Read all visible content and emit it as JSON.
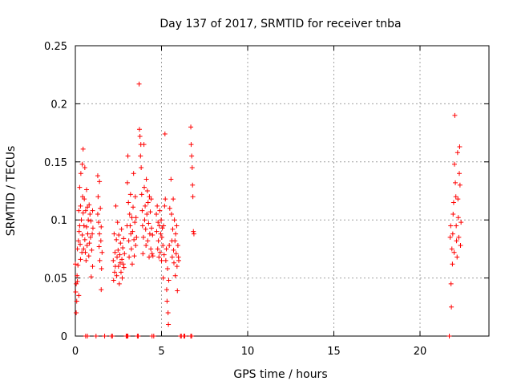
{
  "chart_data": {
    "type": "scatter",
    "title": "Day 137 of 2017, SRMTID for receiver tnba",
    "xlabel": "GPS time / hours",
    "ylabel": "SRMTID / TECUs",
    "xlim": [
      0,
      24
    ],
    "ylim": [
      0,
      0.25
    ],
    "xticks": [
      0,
      5,
      10,
      15,
      20
    ],
    "xtick_labels": [
      "0",
      "5",
      "10",
      "15",
      "20"
    ],
    "yticks": [
      0,
      0.05,
      0.1,
      0.15,
      0.2,
      0.25
    ],
    "ytick_labels": [
      "0",
      "0.05",
      "0.1",
      "0.15",
      "0.2",
      "0.25"
    ],
    "grid": true,
    "marker": "+",
    "color": "#ff0000",
    "series": [
      {
        "name": "SRMTID",
        "points": [
          [
            0.0,
            0.062
          ],
          [
            0.02,
            0.038
          ],
          [
            0.05,
            0.045
          ],
          [
            0.05,
            0.02
          ],
          [
            0.08,
            0.03
          ],
          [
            0.1,
            0.052
          ],
          [
            0.12,
            0.075
          ],
          [
            0.12,
            0.047
          ],
          [
            0.15,
            0.061
          ],
          [
            0.18,
            0.082
          ],
          [
            0.2,
            0.108
          ],
          [
            0.2,
            0.035
          ],
          [
            0.22,
            0.09
          ],
          [
            0.25,
            0.128
          ],
          [
            0.25,
            0.095
          ],
          [
            0.28,
            0.079
          ],
          [
            0.3,
            0.112
          ],
          [
            0.3,
            0.066
          ],
          [
            0.32,
            0.14
          ],
          [
            0.35,
            0.1
          ],
          [
            0.38,
            0.072
          ],
          [
            0.4,
            0.087
          ],
          [
            0.4,
            0.148
          ],
          [
            0.42,
            0.12
          ],
          [
            0.45,
            0.106
          ],
          [
            0.45,
            0.161
          ],
          [
            0.48,
            0.075
          ],
          [
            0.5,
            0.095
          ],
          [
            0.52,
            0.118
          ],
          [
            0.55,
            0.145
          ],
          [
            0.55,
            0.083
          ],
          [
            0.58,
            0.072
          ],
          [
            0.6,
            0.108
          ],
          [
            0.62,
            0.065
          ],
          [
            0.65,
            0.126
          ],
          [
            0.65,
            0.094
          ],
          [
            0.68,
            0.078
          ],
          [
            0.7,
            0.111
          ],
          [
            0.72,
            0.088
          ],
          [
            0.75,
            0.1
          ],
          [
            0.78,
            0.069
          ],
          [
            0.8,
            0.113
          ],
          [
            0.82,
            0.08
          ],
          [
            0.85,
            0.105
          ],
          [
            0.88,
            0.085
          ],
          [
            0.9,
            0.099
          ],
          [
            0.92,
            0.051
          ],
          [
            0.95,
            0.074
          ],
          [
            0.98,
            0.088
          ],
          [
            1.0,
            0.06
          ],
          [
            1.0,
            0.108
          ],
          [
            1.02,
            0.093
          ],
          [
            1.3,
            0.138
          ],
          [
            1.3,
            0.105
          ],
          [
            1.32,
            0.12
          ],
          [
            1.35,
            0.098
          ],
          [
            1.38,
            0.077
          ],
          [
            1.4,
            0.133
          ],
          [
            1.4,
            0.088
          ],
          [
            1.42,
            0.065
          ],
          [
            1.45,
            0.11
          ],
          [
            1.48,
            0.082
          ],
          [
            1.5,
            0.094
          ],
          [
            1.5,
            0.04
          ],
          [
            1.52,
            0.058
          ],
          [
            1.55,
            0.072
          ],
          [
            2.2,
            0.065
          ],
          [
            2.22,
            0.048
          ],
          [
            2.25,
            0.088
          ],
          [
            2.28,
            0.055
          ],
          [
            2.3,
            0.072
          ],
          [
            2.32,
            0.06
          ],
          [
            2.35,
            0.112
          ],
          [
            2.38,
            0.083
          ],
          [
            2.4,
            0.052
          ],
          [
            2.42,
            0.068
          ],
          [
            2.45,
            0.098
          ],
          [
            2.48,
            0.074
          ],
          [
            2.5,
            0.06
          ],
          [
            2.52,
            0.087
          ],
          [
            2.55,
            0.045
          ],
          [
            2.58,
            0.07
          ],
          [
            2.6,
            0.063
          ],
          [
            2.62,
            0.08
          ],
          [
            2.65,
            0.055
          ],
          [
            2.68,
            0.092
          ],
          [
            2.7,
            0.066
          ],
          [
            2.72,
            0.05
          ],
          [
            2.75,
            0.076
          ],
          [
            2.78,
            0.062
          ],
          [
            2.8,
            0.084
          ],
          [
            2.82,
            0.059
          ],
          [
            2.85,
            0.071
          ],
          [
            3.0,
            0.095
          ],
          [
            3.02,
            0.132
          ],
          [
            3.05,
            0.155
          ],
          [
            3.08,
            0.115
          ],
          [
            3.1,
            0.082
          ],
          [
            3.12,
            0.068
          ],
          [
            3.15,
            0.105
          ],
          [
            3.18,
            0.095
          ],
          [
            3.2,
            0.122
          ],
          [
            3.22,
            0.088
          ],
          [
            3.25,
            0.075
          ],
          [
            3.28,
            0.102
          ],
          [
            3.3,
            0.062
          ],
          [
            3.32,
            0.09
          ],
          [
            3.35,
            0.111
          ],
          [
            3.38,
            0.14
          ],
          [
            3.4,
            0.083
          ],
          [
            3.42,
            0.069
          ],
          [
            3.45,
            0.098
          ],
          [
            3.48,
            0.12
          ],
          [
            3.5,
            0.078
          ],
          [
            3.52,
            0.102
          ],
          [
            3.55,
            0.085
          ],
          [
            3.7,
            0.217
          ],
          [
            3.72,
            0.178
          ],
          [
            3.75,
            0.172
          ],
          [
            3.78,
            0.155
          ],
          [
            3.8,
            0.165
          ],
          [
            3.82,
            0.145
          ],
          [
            3.85,
            0.122
          ],
          [
            3.88,
            0.108
          ],
          [
            3.9,
            0.095
          ],
          [
            3.92,
            0.071
          ],
          [
            3.95,
            0.085
          ],
          [
            3.98,
            0.165
          ],
          [
            4.0,
            0.128
          ],
          [
            4.02,
            0.1
          ],
          [
            4.05,
            0.112
          ],
          [
            4.08,
            0.092
          ],
          [
            4.1,
            0.078
          ],
          [
            4.12,
            0.135
          ],
          [
            4.15,
            0.105
          ],
          [
            4.18,
            0.125
          ],
          [
            4.2,
            0.082
          ],
          [
            4.22,
            0.115
          ],
          [
            4.25,
            0.097
          ],
          [
            4.28,
            0.068
          ],
          [
            4.3,
            0.12
          ],
          [
            4.32,
            0.088
          ],
          [
            4.35,
            0.107
          ],
          [
            4.38,
            0.075
          ],
          [
            4.4,
            0.118
          ],
          [
            4.42,
            0.093
          ],
          [
            4.45,
            0.071
          ],
          [
            4.48,
            0.087
          ],
          [
            4.5,
            0.069
          ],
          [
            4.7,
            0.105
          ],
          [
            4.72,
            0.09
          ],
          [
            4.75,
            0.112
          ],
          [
            4.78,
            0.075
          ],
          [
            4.8,
            0.098
          ],
          [
            4.82,
            0.082
          ],
          [
            4.85,
            0.068
          ],
          [
            4.88,
            0.095
          ],
          [
            4.9,
            0.108
          ],
          [
            4.92,
            0.072
          ],
          [
            4.95,
            0.088
          ],
          [
            4.98,
            0.1
          ],
          [
            5.0,
            0.065
          ],
          [
            5.02,
            0.085
          ],
          [
            5.05,
            0.093
          ],
          [
            5.08,
            0.078
          ],
          [
            5.1,
            0.05
          ],
          [
            5.12,
            0.095
          ],
          [
            5.15,
            0.07
          ],
          [
            5.18,
            0.112
          ],
          [
            5.2,
            0.174
          ],
          [
            5.22,
            0.118
          ],
          [
            5.25,
            0.065
          ],
          [
            5.28,
            0.075
          ],
          [
            5.3,
            0.04
          ],
          [
            5.32,
            0.03
          ],
          [
            5.35,
            0.058
          ],
          [
            5.38,
            0.02
          ],
          [
            5.4,
            0.01
          ],
          [
            5.42,
            0.048
          ],
          [
            5.45,
            0.078
          ],
          [
            5.48,
            0.11
          ],
          [
            5.55,
            0.135
          ],
          [
            5.58,
            0.105
          ],
          [
            5.6,
            0.082
          ],
          [
            5.62,
            0.068
          ],
          [
            5.65,
            0.092
          ],
          [
            5.68,
            0.118
          ],
          [
            5.7,
            0.074
          ],
          [
            5.72,
            0.063
          ],
          [
            5.75,
            0.1
          ],
          [
            5.78,
            0.082
          ],
          [
            5.8,
            0.052
          ],
          [
            5.82,
            0.088
          ],
          [
            5.85,
            0.071
          ],
          [
            5.88,
            0.095
          ],
          [
            5.9,
            0.06
          ],
          [
            5.92,
            0.039
          ],
          [
            5.95,
            0.078
          ],
          [
            5.98,
            0.068
          ],
          [
            6.0,
            0.065
          ],
          [
            6.7,
            0.18
          ],
          [
            6.72,
            0.165
          ],
          [
            6.75,
            0.155
          ],
          [
            6.78,
            0.145
          ],
          [
            6.8,
            0.13
          ],
          [
            6.82,
            0.12
          ],
          [
            6.85,
            0.09
          ],
          [
            6.88,
            0.088
          ],
          [
            21.75,
            0.085
          ],
          [
            21.78,
            0.095
          ],
          [
            21.8,
            0.045
          ],
          [
            21.82,
            0.025
          ],
          [
            21.85,
            0.075
          ],
          [
            21.88,
            0.062
          ],
          [
            21.9,
            0.088
          ],
          [
            21.92,
            0.105
          ],
          [
            21.95,
            0.115
          ],
          [
            21.98,
            0.072
          ],
          [
            22.0,
            0.148
          ],
          [
            22.02,
            0.19
          ],
          [
            22.05,
            0.132
          ],
          [
            22.08,
            0.12
          ],
          [
            22.1,
            0.095
          ],
          [
            22.12,
            0.082
          ],
          [
            22.15,
            0.068
          ],
          [
            22.18,
            0.158
          ],
          [
            22.2,
            0.118
          ],
          [
            22.22,
            0.102
          ],
          [
            22.25,
            0.085
          ],
          [
            22.28,
            0.14
          ],
          [
            22.3,
            0.163
          ],
          [
            22.32,
            0.13
          ],
          [
            22.35,
            0.078
          ],
          [
            22.38,
            0.098
          ],
          [
            0.6,
            0.0
          ],
          [
            0.7,
            0.0
          ],
          [
            1.2,
            0.0
          ],
          [
            1.7,
            0.0
          ],
          [
            2.1,
            0.0
          ],
          [
            2.15,
            0.0
          ],
          [
            2.95,
            0.0
          ],
          [
            3.0,
            0.0
          ],
          [
            3.05,
            0.0
          ],
          [
            3.6,
            0.0
          ],
          [
            3.65,
            0.0
          ],
          [
            4.45,
            0.0
          ],
          [
            4.55,
            0.0
          ],
          [
            6.1,
            0.0
          ],
          [
            6.15,
            0.0
          ],
          [
            6.3,
            0.0
          ],
          [
            6.35,
            0.0
          ],
          [
            6.7,
            0.0
          ],
          [
            6.75,
            0.0
          ],
          [
            21.7,
            0.0
          ]
        ]
      }
    ]
  }
}
